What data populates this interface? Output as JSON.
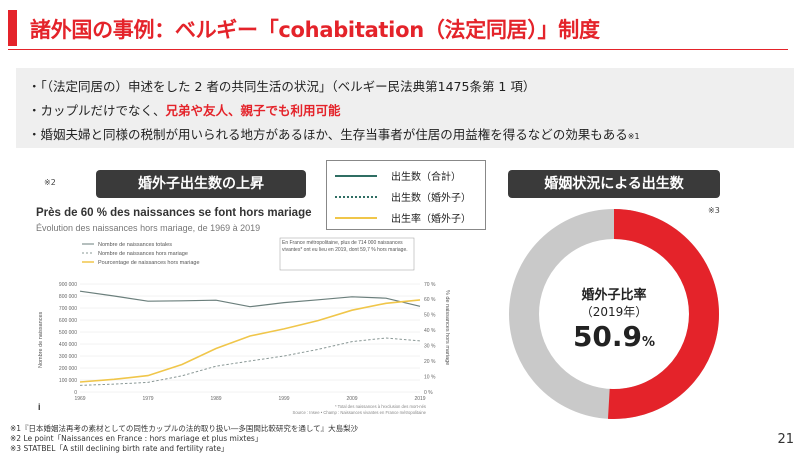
{
  "title": "諸外国の事例：ベルギー「cohabitation（法定同居）」制度",
  "bullets": {
    "b1": "・「（法定同居の）申述をした 2 者の共同生活の状況」（ベルギー民法典第1475条第 1 項）",
    "b2_pre": "・カップルだけでなく、",
    "b2_hl": "兄弟や友人、親子でも利用可能",
    "b3": "・婚姻夫婦と同様の税制が用いられる地方があるほか、生存当事者が住居の用益権を得るなどの効果もある",
    "b3_sup": "※1"
  },
  "notes": {
    "n2": "※2",
    "n3": "※3"
  },
  "left_pill": "婚外子出生数の上昇",
  "right_pill": "婚姻状況による出生数",
  "legend": {
    "items": [
      {
        "label": "出生数（合計）",
        "color": "#2f6e63",
        "style": "solid"
      },
      {
        "label": "出生数（婚外子）",
        "color": "#2f6e63",
        "style": "dotted"
      },
      {
        "label": "出生率（婚外子）",
        "color": "#f0c64a",
        "style": "solid"
      }
    ]
  },
  "embedded_chart": {
    "headline": "Près de 60 % des naissances se font hors mariage",
    "subhead": "Évolution des naissances hors mariage, de 1969 à 2019",
    "legend_total": "Nombre de naissances totales",
    "legend_out": "Nombre de naissances hors mariage",
    "legend_pct": "Pourcentage de naissances hors mariage",
    "annotation": "En France métropolitaine, plus de 714 000 naissances vivantes* ont eu lieu en 2019, dont 59,7 % hors mariage.",
    "ylabel_left": "Nombre de naissances",
    "ylabel_right": "% de naissances hors mariage",
    "yticks_left": [
      "900 000",
      "800 000",
      "700 000",
      "600 000",
      "500 000",
      "400 000",
      "300 000",
      "200 000",
      "100 000",
      "0"
    ],
    "yticks_right": [
      "70 %",
      "60 %",
      "50 %",
      "40 %",
      "30 %",
      "20 %",
      "10 %",
      "0 %"
    ],
    "xticks": [
      "1969",
      "1979",
      "1989",
      "1999",
      "2009",
      "2019"
    ],
    "source": "* Total des naissances à l'exclusion des mort-nés",
    "source2": "Source : Insee • Champ : Naissances vivantes en France métropolitaine",
    "info_mark": "i"
  },
  "chart_data": {
    "type": "line",
    "title": "Évolution des naissances hors mariage, de 1969 à 2019",
    "x": [
      1969,
      1974,
      1979,
      1984,
      1989,
      1994,
      1999,
      2004,
      2009,
      2014,
      2019
    ],
    "series": [
      {
        "name": "Nombre de naissances totales",
        "axis": "left",
        "values": [
          840000,
          800000,
          757000,
          760000,
          765000,
          711000,
          745000,
          768000,
          793000,
          782000,
          714000
        ]
      },
      {
        "name": "Nombre de naissances hors mariage",
        "axis": "left",
        "values": [
          55000,
          66000,
          80000,
          135000,
          215000,
          258000,
          300000,
          355000,
          420000,
          450000,
          426000
        ]
      },
      {
        "name": "Pourcentage de naissances hors mariage",
        "axis": "right",
        "values": [
          6.5,
          8.2,
          10.6,
          17.8,
          28.2,
          36.3,
          40.9,
          46.3,
          53.0,
          57.5,
          59.7
        ]
      }
    ],
    "ylim_left": [
      0,
      900000
    ],
    "ylim_right": [
      0,
      70
    ]
  },
  "donut": {
    "title": "婚外子比率",
    "year": "（2019年）",
    "value": "50.9",
    "unit": "%",
    "fraction": 0.509,
    "color_main": "#e4232a",
    "color_rest": "#c9c9c9"
  },
  "footnotes": {
    "f1": "※1『日本婚姻法再考の素材としての同性カップルの法的取り扱い―多国間比較研究を通して』大島梨沙",
    "f2": "※2 Le point「Naissances en France : hors mariage et plus mixtes」",
    "f3": "※3 STATBEL「A still declining birth rate and fertility rate」"
  },
  "page_number": "21"
}
